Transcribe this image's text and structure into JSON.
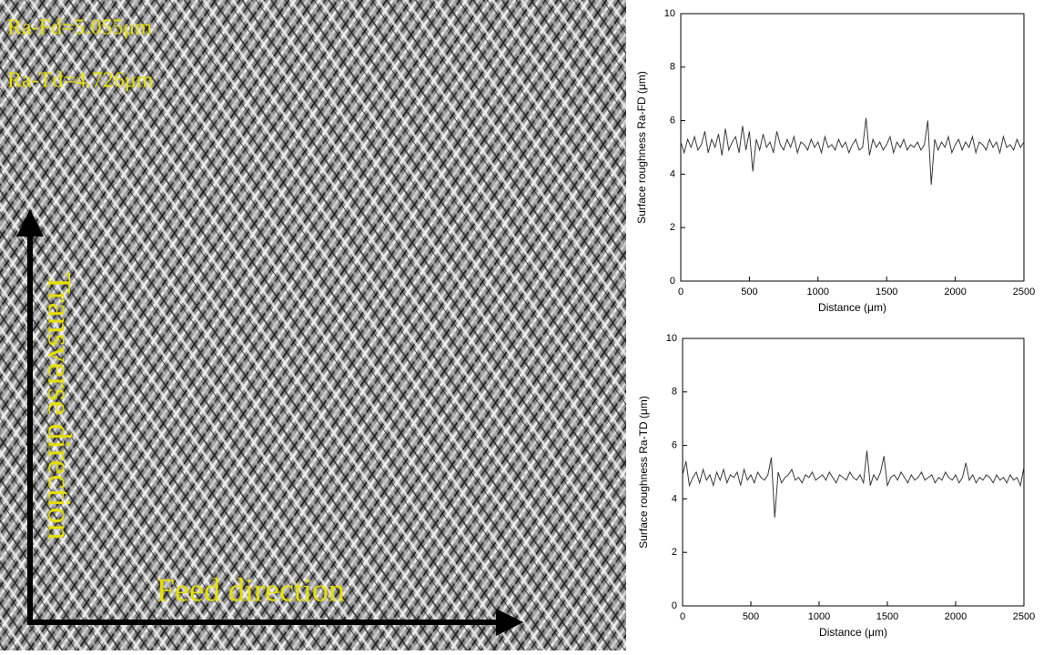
{
  "image": {
    "labels": [
      "Ra-Fd=5.055μm",
      "Ra-Td=4.726μm",
      "Transverse direction",
      "Feed direction"
    ]
  },
  "chart_data": [
    {
      "type": "line",
      "xlabel": "Distance (μm)",
      "ylabel": "Surface roughness Ra-FD (μm)",
      "xlim": [
        0,
        2500
      ],
      "xticks": [
        0,
        500,
        1000,
        1500,
        2000,
        2500
      ],
      "ylim": [
        0,
        10
      ],
      "yticks": [
        0,
        2,
        4,
        6,
        8,
        10
      ],
      "color": "#3a3a3a",
      "x": [
        0,
        25,
        50,
        75,
        100,
        125,
        150,
        175,
        200,
        225,
        250,
        275,
        300,
        325,
        350,
        375,
        400,
        425,
        450,
        475,
        500,
        525,
        550,
        575,
        600,
        625,
        650,
        675,
        700,
        725,
        750,
        775,
        800,
        825,
        850,
        875,
        900,
        925,
        950,
        975,
        1000,
        1025,
        1050,
        1075,
        1100,
        1125,
        1150,
        1175,
        1200,
        1225,
        1250,
        1275,
        1300,
        1325,
        1350,
        1375,
        1400,
        1425,
        1450,
        1475,
        1500,
        1525,
        1550,
        1575,
        1600,
        1625,
        1650,
        1675,
        1700,
        1725,
        1750,
        1775,
        1800,
        1825,
        1850,
        1875,
        1900,
        1925,
        1950,
        1975,
        2000,
        2025,
        2050,
        2075,
        2100,
        2125,
        2150,
        2175,
        2200,
        2225,
        2250,
        2275,
        2300,
        2325,
        2350,
        2375,
        2400,
        2425,
        2450,
        2475,
        2500
      ],
      "values": [
        5.2,
        4.8,
        5.3,
        5.0,
        5.4,
        4.9,
        5.1,
        5.6,
        4.8,
        5.3,
        5.0,
        5.5,
        4.7,
        5.7,
        4.9,
        5.2,
        5.4,
        4.8,
        5.8,
        4.9,
        5.6,
        4.1,
        5.3,
        4.9,
        5.5,
        5.0,
        5.2,
        4.8,
        5.6,
        5.1,
        4.9,
        5.3,
        5.0,
        5.4,
        4.8,
        5.2,
        5.1,
        4.9,
        5.3,
        5.0,
        5.2,
        4.8,
        5.4,
        5.0,
        5.1,
        4.9,
        5.3,
        5.0,
        5.2,
        4.8,
        5.1,
        5.3,
        4.9,
        5.0,
        6.1,
        4.7,
        5.3,
        5.0,
        5.2,
        4.9,
        5.1,
        5.4,
        4.8,
        5.2,
        5.0,
        5.3,
        4.9,
        5.1,
        5.0,
        5.2,
        4.9,
        5.1,
        6.0,
        3.6,
        5.3,
        4.9,
        5.2,
        5.0,
        5.4,
        4.8,
        5.1,
        5.3,
        4.9,
        5.2,
        5.0,
        5.4,
        4.8,
        5.2,
        5.1,
        4.9,
        5.3,
        5.0,
        5.2,
        4.8,
        5.4,
        5.0,
        5.1,
        4.9,
        5.3,
        5.0,
        5.2
      ]
    },
    {
      "type": "line",
      "xlabel": "Distance (μm)",
      "ylabel": "Surface roughness Ra-TD (μm)",
      "xlim": [
        0,
        2500
      ],
      "xticks": [
        0,
        500,
        1000,
        1500,
        2000,
        2500
      ],
      "ylim": [
        0,
        10
      ],
      "yticks": [
        0,
        2,
        4,
        6,
        8,
        10
      ],
      "color": "#3a3a3a",
      "x": [
        0,
        25,
        50,
        75,
        100,
        125,
        150,
        175,
        200,
        225,
        250,
        275,
        300,
        325,
        350,
        375,
        400,
        425,
        450,
        475,
        500,
        525,
        550,
        575,
        600,
        625,
        650,
        675,
        700,
        725,
        750,
        775,
        800,
        825,
        850,
        875,
        900,
        925,
        950,
        975,
        1000,
        1025,
        1050,
        1075,
        1100,
        1125,
        1150,
        1175,
        1200,
        1225,
        1250,
        1275,
        1300,
        1325,
        1350,
        1375,
        1400,
        1425,
        1450,
        1475,
        1500,
        1525,
        1550,
        1575,
        1600,
        1625,
        1650,
        1675,
        1700,
        1725,
        1750,
        1775,
        1800,
        1825,
        1850,
        1875,
        1900,
        1925,
        1950,
        1975,
        2000,
        2025,
        2050,
        2075,
        2100,
        2125,
        2150,
        2175,
        2200,
        2225,
        2250,
        2275,
        2300,
        2325,
        2350,
        2375,
        2400,
        2425,
        2450,
        2475,
        2500
      ],
      "values": [
        4.9,
        5.4,
        4.5,
        4.8,
        5.0,
        4.6,
        5.1,
        4.7,
        4.9,
        4.5,
        5.0,
        4.7,
        5.1,
        4.6,
        4.9,
        4.8,
        5.0,
        4.5,
        5.1,
        4.7,
        4.9,
        4.6,
        5.0,
        4.8,
        4.7,
        4.9,
        5.55,
        3.3,
        5.0,
        4.6,
        4.8,
        4.9,
        5.1,
        4.7,
        4.8,
        4.6,
        4.9,
        4.8,
        5.0,
        4.7,
        4.8,
        4.9,
        4.7,
        5.0,
        4.8,
        4.6,
        4.9,
        4.8,
        4.7,
        5.0,
        4.8,
        4.7,
        4.9,
        4.6,
        5.8,
        4.5,
        4.9,
        4.7,
        5.0,
        5.6,
        4.5,
        4.8,
        4.9,
        4.7,
        5.0,
        4.8,
        4.6,
        4.9,
        4.7,
        4.8,
        5.0,
        4.7,
        4.8,
        4.9,
        4.6,
        4.8,
        4.7,
        5.0,
        4.8,
        4.7,
        4.9,
        4.6,
        4.8,
        5.35,
        4.7,
        4.9,
        4.6,
        4.8,
        4.7,
        4.9,
        4.8,
        4.6,
        4.9,
        4.7,
        4.8,
        4.6,
        4.9,
        4.7,
        4.8,
        4.5,
        5.2
      ]
    }
  ]
}
